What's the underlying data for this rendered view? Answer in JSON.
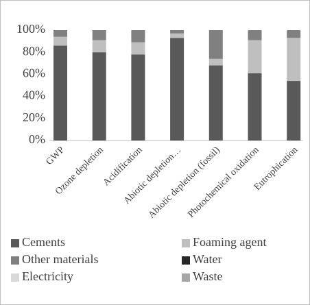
{
  "chart_data": {
    "type": "stacked_bar",
    "categories": [
      "GWP",
      "Ozone depletion",
      "Acidification",
      "Abiotic depletion…",
      "Abiotic depletion (fossil)",
      "Photochemical oxidation",
      "Eutrophication"
    ],
    "series": [
      {
        "name": "Cements",
        "color": "#595959",
        "values": [
          86,
          80,
          78,
          93,
          68,
          61,
          54
        ]
      },
      {
        "name": "Foaming agent",
        "color": "#bfbfbf",
        "values": [
          8,
          11,
          11,
          4,
          6,
          30,
          39
        ]
      },
      {
        "name": "Other materials",
        "color": "#808080",
        "values": [
          6,
          9,
          11,
          3,
          26,
          9,
          7
        ]
      },
      {
        "name": "Water",
        "color": "#262626",
        "values": [
          0,
          0,
          0,
          0,
          0,
          0,
          0
        ]
      },
      {
        "name": "Electricity",
        "color": "#d9d9d9",
        "values": [
          0,
          0,
          0,
          0,
          0,
          0,
          0
        ]
      },
      {
        "name": "Waste",
        "color": "#a6a6a6",
        "values": [
          0,
          0,
          0,
          0,
          0,
          0,
          0
        ]
      }
    ],
    "ylim": [
      0,
      100
    ],
    "yticks": [
      {
        "value": 0,
        "label": "0%"
      },
      {
        "value": 20,
        "label": "20%"
      },
      {
        "value": 40,
        "label": "40%"
      },
      {
        "value": 60,
        "label": "60%"
      },
      {
        "value": 80,
        "label": "80%"
      },
      {
        "value": 100,
        "label": "100%"
      }
    ],
    "grid": false,
    "legend": "bottom"
  }
}
